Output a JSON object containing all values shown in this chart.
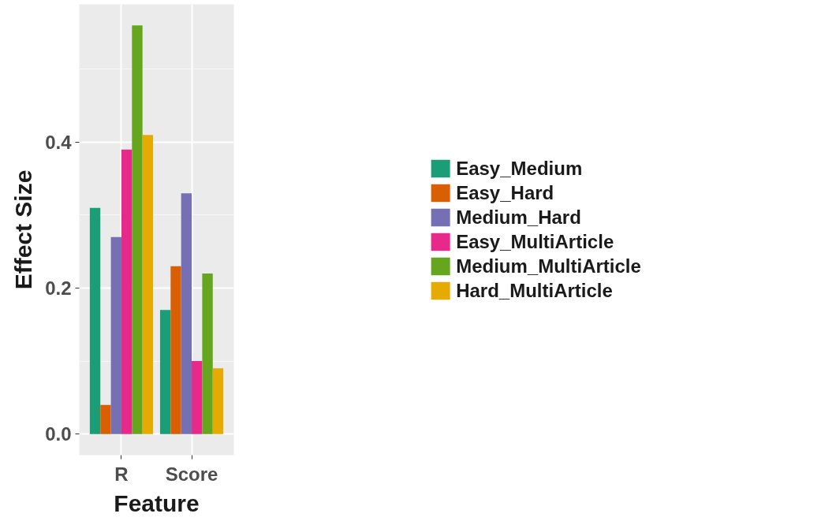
{
  "chart_data": {
    "type": "bar",
    "xlabel": "Feature",
    "ylabel": "Effect Size",
    "categories": [
      "R",
      "Score"
    ],
    "series": [
      {
        "name": "Easy_Medium",
        "color": "#1b9e77",
        "values": [
          0.31,
          0.17
        ]
      },
      {
        "name": "Easy_Hard",
        "color": "#d95f02",
        "values": [
          0.04,
          0.23
        ]
      },
      {
        "name": "Medium_Hard",
        "color": "#7570b3",
        "values": [
          0.27,
          0.33
        ]
      },
      {
        "name": "Easy_MultiArticle",
        "color": "#e7298a",
        "values": [
          0.39,
          0.1
        ]
      },
      {
        "name": "Medium_MultiArticle",
        "color": "#66a61e",
        "values": [
          0.56,
          0.22
        ]
      },
      {
        "name": "Hard_MultiArticle",
        "color": "#e6ab02",
        "values": [
          0.41,
          0.09
        ]
      }
    ],
    "ylim": [
      -0.029,
      0.589
    ],
    "yticks": [
      {
        "value": 0,
        "label": "0.0"
      },
      {
        "value": 0.2,
        "label": "0.2"
      },
      {
        "value": 0.4,
        "label": "0.4"
      }
    ],
    "grid": true,
    "legend": "right"
  }
}
